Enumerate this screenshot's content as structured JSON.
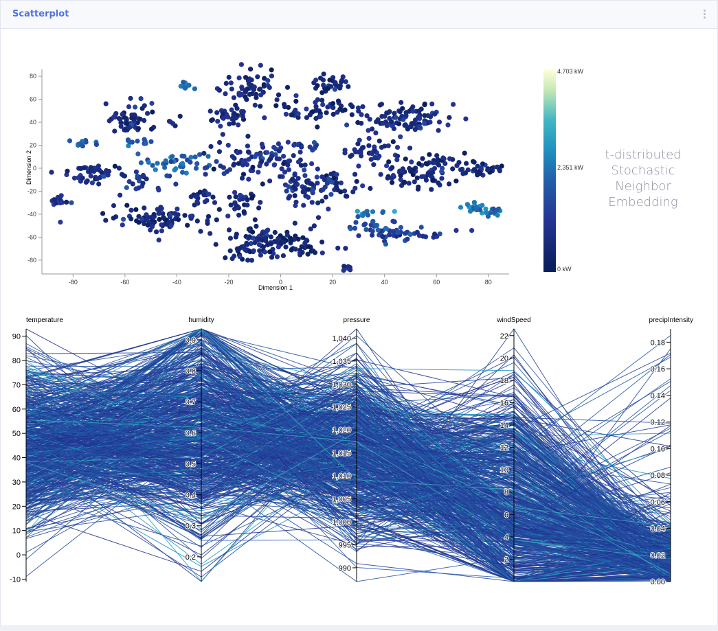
{
  "header": {
    "title": "Scatterplot",
    "menu_icon": "vertical-ellipsis-icon"
  },
  "tsne_caption": [
    "t-distributed",
    "Stochastic",
    "Neighbor",
    "Embedding"
  ],
  "colors": {
    "accent": "#4e73df",
    "scale_low": "#081d58",
    "scale_mid": "#2c7fb8",
    "scale_high": "#ffffd9"
  },
  "chart_data": [
    {
      "type": "scatter",
      "xlabel": "Dimension 1",
      "ylabel": "Dimension 2",
      "xlim": [
        -92,
        88
      ],
      "ylim": [
        -92,
        86
      ],
      "x_ticks": [
        -80,
        -60,
        -40,
        -20,
        0,
        20,
        40,
        60,
        80
      ],
      "y_ticks": [
        80,
        60,
        40,
        20,
        0,
        -20,
        -40,
        -60,
        -80
      ],
      "color_scale": {
        "min_label": "0 kW",
        "mid_label": "2.351 kW",
        "max_label": "4.703 kW",
        "min": 0,
        "mid": 2.351,
        "max": 4.703
      },
      "clusters": [
        {
          "cx": -58,
          "cy": 42,
          "rx": 9,
          "ry": 15,
          "n": 55,
          "v": 0.15
        },
        {
          "cx": -42,
          "cy": 40,
          "rx": 3,
          "ry": 3,
          "n": 4,
          "v": 0.2
        },
        {
          "cx": -38,
          "cy": 71,
          "rx": 5,
          "ry": 3,
          "n": 10,
          "v": 0.55
        },
        {
          "cx": -56,
          "cy": 22,
          "rx": 6,
          "ry": 4,
          "n": 10,
          "v": 0.4
        },
        {
          "cx": -77,
          "cy": 22,
          "rx": 6,
          "ry": 3,
          "n": 12,
          "v": 0.45
        },
        {
          "cx": -72,
          "cy": -5,
          "rx": 12,
          "ry": 7,
          "n": 45,
          "v": 0.2
        },
        {
          "cx": -53,
          "cy": -10,
          "rx": 6,
          "ry": 7,
          "n": 20,
          "v": 0.25
        },
        {
          "cx": -40,
          "cy": 5,
          "rx": 12,
          "ry": 8,
          "n": 40,
          "v": 0.45
        },
        {
          "cx": -86,
          "cy": -28,
          "rx": 5,
          "ry": 4,
          "n": 15,
          "v": 0.2
        },
        {
          "cx": -47,
          "cy": -45,
          "rx": 17,
          "ry": 10,
          "n": 90,
          "v": 0.15
        },
        {
          "cx": -30,
          "cy": -25,
          "rx": 6,
          "ry": 6,
          "n": 20,
          "v": 0.15
        },
        {
          "cx": -20,
          "cy": 45,
          "rx": 9,
          "ry": 8,
          "n": 40,
          "v": 0.15
        },
        {
          "cx": -10,
          "cy": 70,
          "rx": 10,
          "ry": 13,
          "n": 55,
          "v": 0.15
        },
        {
          "cx": -10,
          "cy": 8,
          "rx": 16,
          "ry": 15,
          "n": 85,
          "v": 0.2
        },
        {
          "cx": -15,
          "cy": -30,
          "rx": 6,
          "ry": 10,
          "n": 28,
          "v": 0.15
        },
        {
          "cx": -5,
          "cy": -65,
          "rx": 18,
          "ry": 15,
          "n": 130,
          "v": 0.12
        },
        {
          "cx": 13,
          "cy": 50,
          "rx": 12,
          "ry": 10,
          "n": 50,
          "v": 0.15
        },
        {
          "cx": 20,
          "cy": 73,
          "rx": 8,
          "ry": 6,
          "n": 30,
          "v": 0.15
        },
        {
          "cx": 12,
          "cy": -15,
          "rx": 14,
          "ry": 16,
          "n": 90,
          "v": 0.2
        },
        {
          "cx": 10,
          "cy": 20,
          "rx": 6,
          "ry": 4,
          "n": 12,
          "v": 0.3
        },
        {
          "cx": 48,
          "cy": 42,
          "rx": 16,
          "ry": 13,
          "n": 100,
          "v": 0.18
        },
        {
          "cx": 35,
          "cy": 15,
          "rx": 9,
          "ry": 9,
          "n": 35,
          "v": 0.2
        },
        {
          "cx": 55,
          "cy": 0,
          "rx": 16,
          "ry": 15,
          "n": 100,
          "v": 0.15
        },
        {
          "cx": 77,
          "cy": 0,
          "rx": 7,
          "ry": 7,
          "n": 30,
          "v": 0.15
        },
        {
          "cx": 78,
          "cy": -36,
          "rx": 6,
          "ry": 5,
          "n": 30,
          "v": 0.5
        },
        {
          "cx": 48,
          "cy": -58,
          "rx": 14,
          "ry": 6,
          "n": 45,
          "v": 0.3
        },
        {
          "cx": 35,
          "cy": -50,
          "rx": 7,
          "ry": 6,
          "n": 20,
          "v": 0.4
        },
        {
          "cx": 25,
          "cy": -87,
          "rx": 3,
          "ry": 2,
          "n": 6,
          "v": 0.2
        },
        {
          "cx": 35,
          "cy": -38,
          "rx": 6,
          "ry": 3,
          "n": 10,
          "v": 0.5
        }
      ]
    },
    {
      "type": "parallel_coordinates",
      "axes": [
        {
          "name": "temperature",
          "range": [
            -11,
            93
          ],
          "ticks": [
            -10,
            0,
            10,
            20,
            30,
            40,
            50,
            60,
            70,
            80,
            90
          ],
          "tick_labels": [
            "-10",
            "0",
            "10",
            "20",
            "30",
            "40",
            "50",
            "60",
            "70",
            "80",
            "90"
          ],
          "center": 45,
          "spread": 17
        },
        {
          "name": "humidity",
          "range": [
            0.12,
            0.935
          ],
          "ticks": [
            0.2,
            0.3,
            0.4,
            0.5,
            0.6,
            0.7,
            0.8,
            0.9
          ],
          "tick_labels": [
            "0.2",
            "0.3",
            "0.4",
            "0.5",
            "0.6",
            "0.7",
            "0.8",
            "0.9"
          ],
          "center": 0.62,
          "spread": 0.17
        },
        {
          "name": "pressure",
          "range": [
            987,
            1042
          ],
          "ticks": [
            990,
            995,
            1000,
            1005,
            1010,
            1015,
            1020,
            1025,
            1030,
            1035,
            1040
          ],
          "tick_labels": [
            "990",
            "995",
            "1,000",
            "1,005",
            "1,010",
            "1,015",
            "1,020",
            "1,025",
            "1,030",
            "1,035",
            "1,040"
          ],
          "center": 1015,
          "spread": 9
        },
        {
          "name": "windSpeed",
          "range": [
            0,
            22.6
          ],
          "ticks": [
            2,
            4,
            6,
            8,
            10,
            12,
            14,
            16,
            18,
            20,
            22
          ],
          "tick_labels": [
            "2",
            "4",
            "6",
            "8",
            "10",
            "12",
            "14",
            "16",
            "18",
            "20",
            "22"
          ],
          "center": 7,
          "spread": 5
        },
        {
          "name": "precipIntensity",
          "range": [
            0,
            0.19
          ],
          "ticks": [
            0,
            0.02,
            0.04,
            0.06,
            0.08,
            0.1,
            0.12,
            0.14,
            0.16,
            0.18
          ],
          "tick_labels": [
            "0.00",
            "0.02",
            "0.04",
            "0.06",
            "0.08",
            "0.10",
            "0.12",
            "0.14",
            "0.16",
            "0.18"
          ],
          "center": 0.005,
          "spread": 0.02
        }
      ],
      "line_count": 700
    }
  ]
}
